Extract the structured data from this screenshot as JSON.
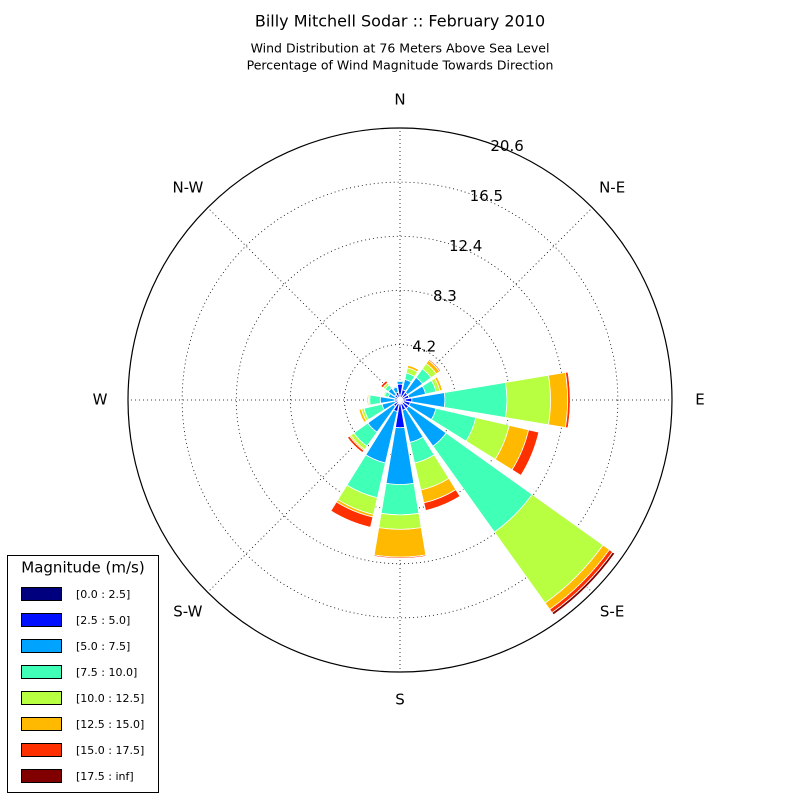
{
  "chart_data": {
    "type": "windrose",
    "title": "Billy Mitchell Sodar :: February 2010",
    "subtitle": [
      "Wind Distribution at 76 Meters Above Sea Level",
      "Percentage of Wind Magnitude Towards Direction"
    ],
    "categories": [
      "N",
      null,
      "N-E",
      null,
      "E",
      null,
      "S-E",
      null,
      "S",
      null,
      "S-W",
      null,
      "W",
      null,
      "N-W",
      null
    ],
    "rlim": [
      0,
      20.6
    ],
    "rticks": [
      4.2,
      8.3,
      12.4,
      16.5,
      20.6
    ],
    "grid": true,
    "legend_title": "Magnitude (m/s)",
    "legend_position": "lower left",
    "series": [
      {
        "name": "[0.0 : 2.5]",
        "color": "#00007f",
        "values": [
          0.4,
          0.2,
          0.2,
          0.2,
          0.4,
          0.3,
          0.3,
          0.3,
          0.3,
          0.3,
          0.2,
          0.1,
          0.1,
          0.1,
          0.2,
          0.2
        ]
      },
      {
        "name": "[2.5 : 5.0]",
        "color": "#0010ff",
        "values": [
          0.8,
          0.6,
          0.5,
          0.5,
          0.5,
          0.5,
          0.5,
          0.5,
          1.8,
          0.6,
          0.4,
          0.3,
          0.3,
          0.3,
          0.3,
          0.4
        ]
      },
      {
        "name": "[5.0 : 7.5]",
        "color": "#00a4ff",
        "values": [
          0.2,
          0.8,
          1.4,
          1.3,
          2.5,
          2.0,
          3.5,
          2.5,
          4.3,
          4.0,
          2.4,
          1.0,
          1.1,
          0.5,
          0.6,
          0.4
        ]
      },
      {
        "name": "[7.5 : 10.0]",
        "color": "#40ffb7",
        "values": [
          0.1,
          0.5,
          0.8,
          0.8,
          4.7,
          3.1,
          8.0,
          1.6,
          2.3,
          2.7,
          1.3,
          1.4,
          0.8,
          0.3,
          0.3,
          0.1
        ]
      },
      {
        "name": "[10.0 : 12.5]",
        "color": "#b7ff40",
        "values": [
          0,
          0.4,
          0.5,
          0.3,
          3.3,
          2.6,
          6.6,
          2.1,
          1.1,
          1.3,
          0.3,
          0.2,
          0.1,
          0.1,
          0.2,
          0
        ]
      },
      {
        "name": "[12.5 : 15.0]",
        "color": "#ffb900",
        "values": [
          0,
          0.2,
          0.3,
          0.2,
          1.3,
          1.5,
          0.6,
          1.0,
          2.1,
          0.2,
          0.1,
          0.2,
          0.1,
          0,
          0,
          0
        ]
      },
      {
        "name": "[15.0 : 17.5]",
        "color": "#ff3000",
        "values": [
          0,
          0,
          0.1,
          0,
          0.2,
          0.8,
          0.3,
          0.6,
          0.1,
          0.8,
          0.2,
          0,
          0,
          0,
          0.2,
          0
        ]
      },
      {
        "name": "[17.5 : inf]",
        "color": "#800000",
        "values": [
          0,
          0,
          0,
          0,
          0,
          0,
          0.2,
          0,
          0,
          0,
          0,
          0,
          0,
          0,
          0,
          0
        ]
      }
    ]
  }
}
